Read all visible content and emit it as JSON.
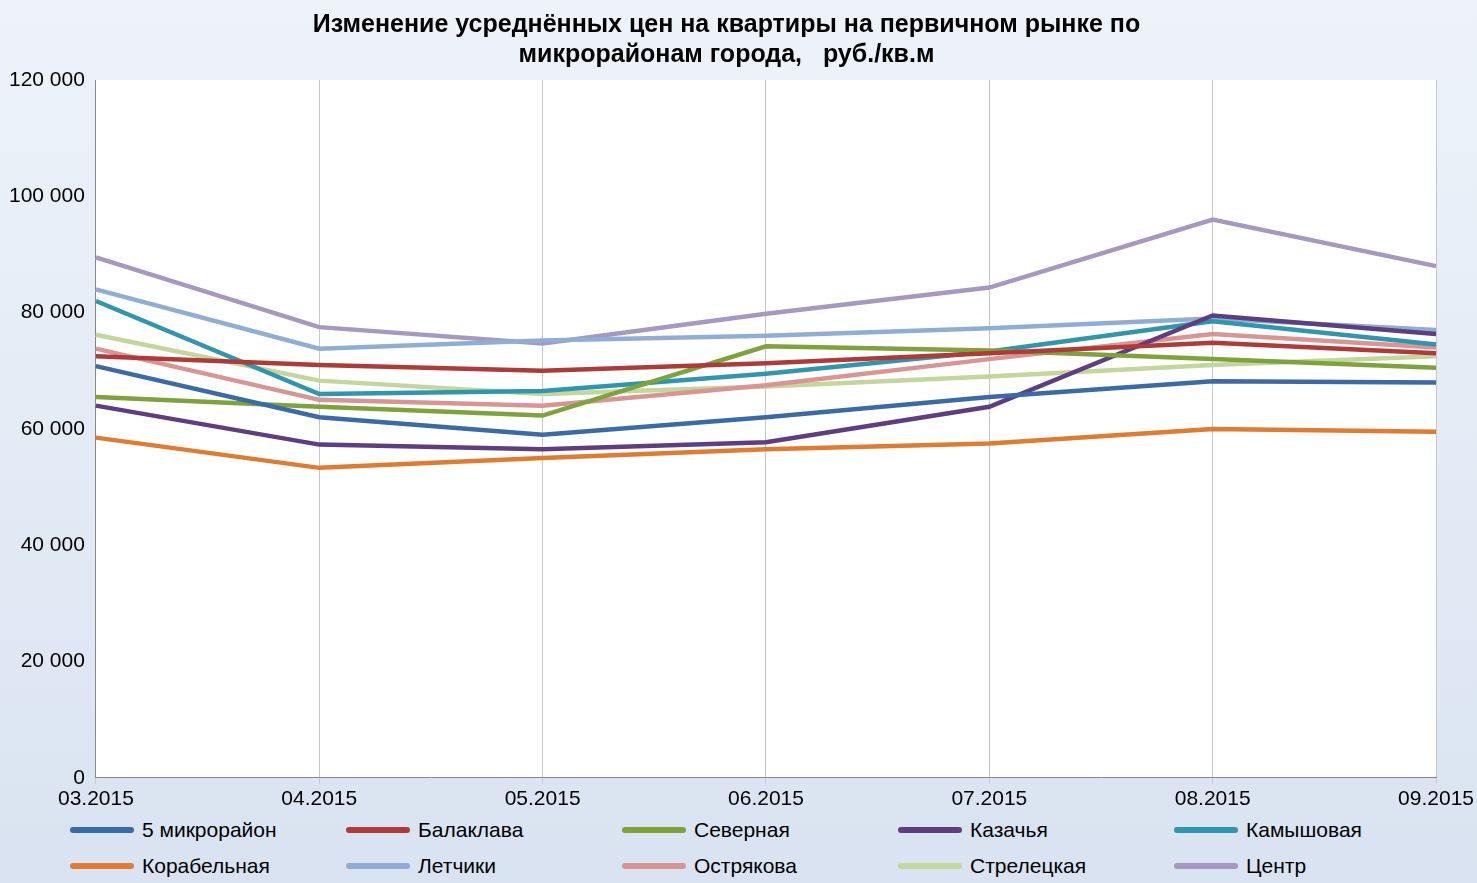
{
  "chart_data": {
    "type": "line",
    "title": [
      "Изменение усреднённых цен на квартиры на первичном рынке по",
      "микрорайонам города,   руб./кв.м"
    ],
    "categories": [
      "03.2015",
      "04.2015",
      "05.2015",
      "06.2015",
      "07.2015",
      "08.2015",
      "09.2015"
    ],
    "series": [
      {
        "name": "5 микрорайон",
        "color": "#3a6aa8",
        "values": [
          70800,
          62000,
          59000,
          62000,
          65500,
          68200,
          68000
        ]
      },
      {
        "name": "Балаклава",
        "color": "#b03a37",
        "values": [
          72500,
          71000,
          70000,
          71300,
          73000,
          74800,
          73000
        ]
      },
      {
        "name": "Северная",
        "color": "#7ea33a",
        "values": [
          65500,
          63800,
          62300,
          74200,
          73500,
          72000,
          70500
        ]
      },
      {
        "name": "Казачья",
        "color": "#5e3d80",
        "values": [
          64000,
          57300,
          56500,
          57700,
          63800,
          79500,
          76300
        ]
      },
      {
        "name": "Камышовая",
        "color": "#2e97ae",
        "values": [
          82000,
          66000,
          66500,
          69500,
          73300,
          78500,
          74500
        ]
      },
      {
        "name": "Корабельная",
        "color": "#e07b30",
        "values": [
          58500,
          53300,
          55000,
          56500,
          57500,
          60000,
          59500
        ]
      },
      {
        "name": "Летчики",
        "color": "#8faed6",
        "values": [
          84000,
          73800,
          75200,
          76000,
          77300,
          79000,
          77000
        ]
      },
      {
        "name": "Острякова",
        "color": "#d99594",
        "values": [
          73800,
          65000,
          64000,
          67500,
          72000,
          76300,
          74000
        ]
      },
      {
        "name": "Стрелецкая",
        "color": "#c3d69b",
        "values": [
          76200,
          68300,
          66000,
          67300,
          69000,
          71000,
          72500
        ]
      },
      {
        "name": "Центр",
        "color": "#a698c0",
        "values": [
          89500,
          77500,
          74700,
          79800,
          84300,
          96000,
          88000
        ]
      }
    ],
    "ylim": [
      0,
      120000
    ],
    "yticks": [
      {
        "value": 0,
        "label": "0"
      },
      {
        "value": 20000,
        "label": "20 000"
      },
      {
        "value": 40000,
        "label": "40 000"
      },
      {
        "value": 60000,
        "label": "60 000"
      },
      {
        "value": 80000,
        "label": "80 000"
      },
      {
        "value": 100000,
        "label": "100 000"
      },
      {
        "value": 120000,
        "label": "120 000"
      }
    ],
    "grid": true,
    "legend": "bottom",
    "marker": "none"
  }
}
